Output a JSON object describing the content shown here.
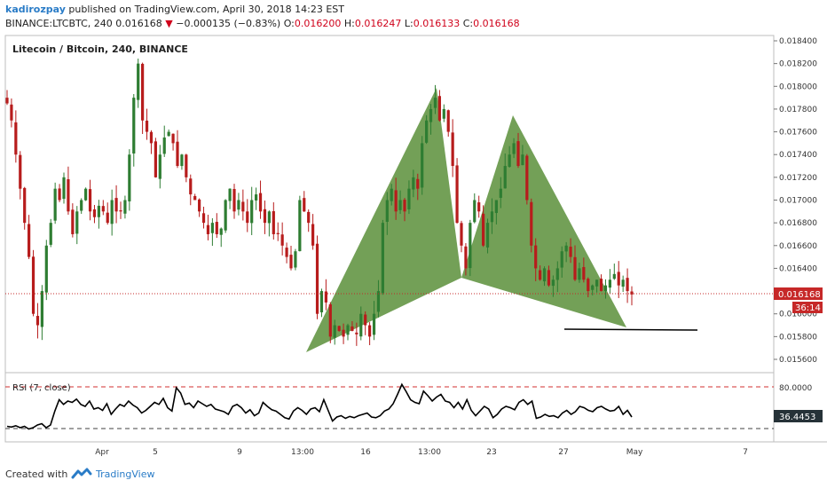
{
  "header": {
    "author": "kadirozpay",
    "published_text": " published on TradingView.com, April 30, 2018 14:23 EST",
    "symbol_line": "BINANCE:LTCBTC, 240",
    "last": "0.016168",
    "change_arrow": "▼",
    "change": "−0.000135 (−0.83%)",
    "o_label": "O:",
    "o_value": "0.016200",
    "h_label": "H:",
    "h_value": "0.016247",
    "l_label": "L:",
    "l_value": "0.016133",
    "c_label": "C:",
    "c_value": "0.016168"
  },
  "footer": {
    "created_with": "Created with",
    "brand": "TradingView"
  },
  "colors": {
    "up": "#2e7d32",
    "down": "#b71c1c",
    "pattern_fill": "#5a8f3a",
    "price_line": "#c62828",
    "rsi_line": "#000000",
    "rsi_band": "#d32f2f"
  },
  "chart_data": [
    {
      "type": "candlestick",
      "title": "Litecoin / Bitcoin, 240, BINANCE",
      "ylim": [
        0.0155,
        0.0185
      ],
      "y_ticks": [
        "0.018400",
        "0.018200",
        "0.018000",
        "0.017800",
        "0.017600",
        "0.017400",
        "0.017200",
        "0.017000",
        "0.016800",
        "0.016600",
        "0.016400",
        "0.016000",
        "0.015800",
        "0.015600"
      ],
      "x_ticks": [
        "Apr",
        "5",
        "9",
        "13:00",
        "16",
        "13:00",
        "23",
        "27",
        "May",
        "7"
      ],
      "last_price_label": "0.016168",
      "countdown_label": "36:14",
      "close_path": [
        0.01785,
        0.0177,
        0.0174,
        0.0171,
        0.0168,
        0.0165,
        0.016,
        0.0159,
        0.0162,
        0.0166,
        0.0168,
        0.0171,
        0.017,
        0.0172,
        0.0169,
        0.0167,
        0.0169,
        0.017,
        0.0171,
        0.0169,
        0.01685,
        0.01695,
        0.0169,
        0.0168,
        0.017,
        0.0169,
        0.0169,
        0.017,
        0.0174,
        0.0179,
        0.0182,
        0.0177,
        0.0176,
        0.0175,
        0.0172,
        0.0174,
        0.01755,
        0.0176,
        0.0175,
        0.0173,
        0.0174,
        0.0172,
        0.01705,
        0.017,
        0.0169,
        0.0168,
        0.0167,
        0.0168,
        0.0167,
        0.01675,
        0.017,
        0.0171,
        0.0169,
        0.017,
        0.0169,
        0.0168,
        0.017,
        0.01705,
        0.0169,
        0.0168,
        0.0169,
        0.0167,
        0.0167,
        0.0166,
        0.0165,
        0.0164,
        0.01655,
        0.017,
        0.0169,
        0.0168,
        0.0166,
        0.016,
        0.0162,
        0.0161,
        0.0158,
        0.0159,
        0.01585,
        0.0158,
        0.0159,
        0.01585,
        0.01582,
        0.016,
        0.0159,
        0.0158,
        0.016,
        0.0162,
        0.0168,
        0.017,
        0.0171,
        0.0169,
        0.017,
        0.0169,
        0.0171,
        0.0172,
        0.0171,
        0.0175,
        0.0177,
        0.0178,
        0.0179,
        0.0177,
        0.0178,
        0.0176,
        0.0173,
        0.0168,
        0.0166,
        0.0164,
        0.0168,
        0.017,
        0.0169,
        0.0166,
        0.0168,
        0.0169,
        0.017,
        0.0171,
        0.0173,
        0.0174,
        0.0175,
        0.0173,
        0.0174,
        0.017,
        0.0166,
        0.0164,
        0.0163,
        0.0164,
        0.01625,
        0.0163,
        0.0164,
        0.01655,
        0.0166,
        0.0165,
        0.0163,
        0.0164,
        0.0163,
        0.0162,
        0.01625,
        0.0163,
        0.0162,
        0.01625,
        0.0163,
        0.01635,
        0.01625,
        0.0163,
        0.0162,
        0.01617
      ]
    },
    {
      "type": "line",
      "title": "RSI (7, close)",
      "ylim": [
        0,
        100
      ],
      "y_ticks": [
        "80.0000"
      ],
      "bands": [
        80,
        20
      ],
      "last_value_label": "36.4453",
      "values": [
        22,
        21,
        23,
        20,
        22,
        18,
        20,
        24,
        26,
        20,
        24,
        45,
        62,
        55,
        60,
        58,
        63,
        55,
        52,
        60,
        48,
        50,
        46,
        56,
        40,
        48,
        55,
        52,
        60,
        54,
        50,
        42,
        46,
        52,
        58,
        55,
        64,
        50,
        45,
        80,
        72,
        55,
        57,
        50,
        60,
        56,
        52,
        55,
        48,
        46,
        44,
        40,
        52,
        55,
        50,
        42,
        47,
        38,
        42,
        58,
        52,
        47,
        45,
        40,
        35,
        33,
        45,
        50,
        46,
        40,
        48,
        50,
        44,
        62,
        46,
        30,
        36,
        38,
        34,
        37,
        35,
        38,
        40,
        42,
        36,
        35,
        38,
        45,
        48,
        56,
        70,
        85,
        74,
        62,
        58,
        56,
        75,
        68,
        60,
        66,
        70,
        60,
        58,
        50,
        58,
        48,
        62,
        46,
        38,
        45,
        52,
        48,
        35,
        40,
        48,
        52,
        50,
        47,
        58,
        62,
        55,
        60,
        34,
        36,
        40,
        37,
        38,
        35,
        42,
        46,
        40,
        44,
        52,
        50,
        46,
        44,
        50,
        52,
        48,
        45,
        46,
        52,
        40,
        46,
        36
      ]
    }
  ]
}
